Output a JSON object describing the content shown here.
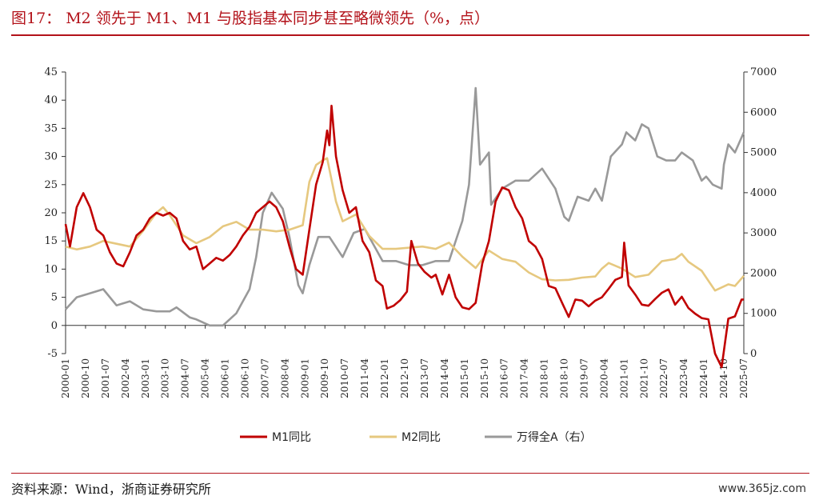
{
  "title": "图17： M2 领先于 M1、M1 与股指基本同步甚至略微领先（%，点）",
  "source": "资料来源：Wind，浙商证券研究所",
  "watermark": "www.365jz.com",
  "chart_data": {
    "type": "line",
    "title": "图17： M2 领先于 M1、M1 与股指基本同步甚至略微领先（%，点）",
    "xlabel": "",
    "ylabel": "",
    "y_left_lim": [
      -5,
      45
    ],
    "y_left_ticks": [
      -5,
      0,
      5,
      10,
      15,
      20,
      25,
      30,
      35,
      40,
      45
    ],
    "y_right_lim": [
      0,
      7000
    ],
    "y_right_ticks": [
      0,
      1000,
      2000,
      3000,
      4000,
      5000,
      6000,
      7000
    ],
    "x_range": [
      "2000-01",
      "2025-07"
    ],
    "x_ticks": [
      "2000-01",
      "2000-10",
      "2001-07",
      "2002-04",
      "2003-01",
      "2003-10",
      "2004-07",
      "2005-04",
      "2006-01",
      "2006-10",
      "2007-07",
      "2008-04",
      "2009-01",
      "2009-10",
      "2010-07",
      "2011-04",
      "2012-01",
      "2012-10",
      "2013-07",
      "2014-04",
      "2015-01",
      "2015-10",
      "2016-07",
      "2017-04",
      "2018-01",
      "2018-10",
      "2019-07",
      "2020-04",
      "2021-01",
      "2021-10",
      "2022-07",
      "2023-04",
      "2024-01",
      "2024-10",
      "2025-07"
    ],
    "legend_position": "bottom",
    "grid": false,
    "series": [
      {
        "name": "M1同比",
        "axis": "left",
        "color": "#c00000",
        "points": [
          [
            "2000-01",
            18
          ],
          [
            "2000-03",
            14
          ],
          [
            "2000-06",
            21
          ],
          [
            "2000-09",
            23.5
          ],
          [
            "2000-12",
            21
          ],
          [
            "2001-03",
            17
          ],
          [
            "2001-06",
            16
          ],
          [
            "2001-09",
            13
          ],
          [
            "2001-12",
            11
          ],
          [
            "2002-03",
            10.5
          ],
          [
            "2002-06",
            13
          ],
          [
            "2002-09",
            16
          ],
          [
            "2002-12",
            17
          ],
          [
            "2003-03",
            19
          ],
          [
            "2003-06",
            20
          ],
          [
            "2003-09",
            19.5
          ],
          [
            "2003-12",
            20
          ],
          [
            "2004-03",
            19
          ],
          [
            "2004-06",
            15
          ],
          [
            "2004-09",
            13.5
          ],
          [
            "2004-12",
            14
          ],
          [
            "2005-03",
            10
          ],
          [
            "2005-06",
            11
          ],
          [
            "2005-09",
            12
          ],
          [
            "2005-12",
            11.5
          ],
          [
            "2006-03",
            12.5
          ],
          [
            "2006-06",
            14
          ],
          [
            "2006-09",
            16
          ],
          [
            "2006-12",
            17.5
          ],
          [
            "2007-03",
            20
          ],
          [
            "2007-06",
            21
          ],
          [
            "2007-09",
            22
          ],
          [
            "2007-12",
            21
          ],
          [
            "2008-03",
            18.5
          ],
          [
            "2008-06",
            14
          ],
          [
            "2008-09",
            10
          ],
          [
            "2008-12",
            9
          ],
          [
            "2009-03",
            17
          ],
          [
            "2009-06",
            25
          ],
          [
            "2009-09",
            29
          ],
          [
            "2009-11",
            34.6
          ],
          [
            "2009-12",
            32
          ],
          [
            "2010-01",
            39
          ],
          [
            "2010-03",
            30
          ],
          [
            "2010-06",
            24
          ],
          [
            "2010-09",
            20
          ],
          [
            "2010-12",
            21
          ],
          [
            "2011-03",
            15
          ],
          [
            "2011-06",
            13
          ],
          [
            "2011-09",
            8
          ],
          [
            "2011-12",
            7
          ],
          [
            "2012-02",
            3
          ],
          [
            "2012-05",
            3.5
          ],
          [
            "2012-08",
            4.5
          ],
          [
            "2012-11",
            6
          ],
          [
            "2013-01",
            15
          ],
          [
            "2013-04",
            11
          ],
          [
            "2013-07",
            9.5
          ],
          [
            "2013-10",
            8.5
          ],
          [
            "2013-12",
            9
          ],
          [
            "2014-03",
            5.5
          ],
          [
            "2014-06",
            9
          ],
          [
            "2014-09",
            5
          ],
          [
            "2014-12",
            3.2
          ],
          [
            "2015-03",
            2.9
          ],
          [
            "2015-06",
            4
          ],
          [
            "2015-09",
            11
          ],
          [
            "2015-12",
            15
          ],
          [
            "2016-03",
            22
          ],
          [
            "2016-06",
            24.5
          ],
          [
            "2016-09",
            24
          ],
          [
            "2016-12",
            21
          ],
          [
            "2017-03",
            19
          ],
          [
            "2017-06",
            15
          ],
          [
            "2017-09",
            14
          ],
          [
            "2017-12",
            11.8
          ],
          [
            "2018-03",
            7
          ],
          [
            "2018-06",
            6.6
          ],
          [
            "2018-09",
            4
          ],
          [
            "2018-12",
            1.5
          ],
          [
            "2019-03",
            4.6
          ],
          [
            "2019-06",
            4.4
          ],
          [
            "2019-09",
            3.4
          ],
          [
            "2019-12",
            4.4
          ],
          [
            "2020-03",
            5
          ],
          [
            "2020-06",
            6.5
          ],
          [
            "2020-09",
            8.1
          ],
          [
            "2020-12",
            8.6
          ],
          [
            "2021-01",
            14.7
          ],
          [
            "2021-03",
            7.1
          ],
          [
            "2021-06",
            5.5
          ],
          [
            "2021-09",
            3.7
          ],
          [
            "2021-12",
            3.5
          ],
          [
            "2022-03",
            4.7
          ],
          [
            "2022-06",
            5.8
          ],
          [
            "2022-09",
            6.4
          ],
          [
            "2022-12",
            3.7
          ],
          [
            "2023-03",
            5.1
          ],
          [
            "2023-06",
            3.1
          ],
          [
            "2023-09",
            2.1
          ],
          [
            "2023-12",
            1.3
          ],
          [
            "2024-03",
            1.1
          ],
          [
            "2024-06",
            -5
          ],
          [
            "2024-09",
            -7.4
          ],
          [
            "2024-12",
            1.2
          ],
          [
            "2025-03",
            1.6
          ],
          [
            "2025-06",
            4.6
          ],
          [
            "2025-07",
            4.6
          ]
        ]
      },
      {
        "name": "M2同比",
        "axis": "left",
        "color": "#e6c87f",
        "points": [
          [
            "2000-01",
            14
          ],
          [
            "2000-06",
            13.5
          ],
          [
            "2000-12",
            14
          ],
          [
            "2001-06",
            15
          ],
          [
            "2001-12",
            14.5
          ],
          [
            "2002-06",
            14
          ],
          [
            "2002-12",
            16.8
          ],
          [
            "2003-06",
            20
          ],
          [
            "2003-09",
            21
          ],
          [
            "2003-12",
            19.6
          ],
          [
            "2004-06",
            16
          ],
          [
            "2004-12",
            14.6
          ],
          [
            "2005-06",
            15.7
          ],
          [
            "2005-12",
            17.6
          ],
          [
            "2006-06",
            18.4
          ],
          [
            "2006-12",
            17
          ],
          [
            "2007-06",
            17
          ],
          [
            "2007-12",
            16.7
          ],
          [
            "2008-06",
            17
          ],
          [
            "2008-12",
            17.8
          ],
          [
            "2009-03",
            25.5
          ],
          [
            "2009-06",
            28.5
          ],
          [
            "2009-09",
            29.3
          ],
          [
            "2009-11",
            29.7
          ],
          [
            "2010-03",
            22
          ],
          [
            "2010-06",
            18.5
          ],
          [
            "2010-12",
            19.7
          ],
          [
            "2011-06",
            15.9
          ],
          [
            "2011-12",
            13.6
          ],
          [
            "2012-06",
            13.6
          ],
          [
            "2012-12",
            13.8
          ],
          [
            "2013-06",
            14
          ],
          [
            "2013-12",
            13.6
          ],
          [
            "2014-06",
            14.7
          ],
          [
            "2014-12",
            12.2
          ],
          [
            "2015-06",
            10.2
          ],
          [
            "2015-12",
            13.3
          ],
          [
            "2016-06",
            11.8
          ],
          [
            "2016-12",
            11.3
          ],
          [
            "2017-06",
            9.4
          ],
          [
            "2017-12",
            8.2
          ],
          [
            "2018-06",
            8
          ],
          [
            "2018-12",
            8.1
          ],
          [
            "2019-06",
            8.5
          ],
          [
            "2019-12",
            8.7
          ],
          [
            "2020-03",
            10.1
          ],
          [
            "2020-06",
            11.1
          ],
          [
            "2020-12",
            10.1
          ],
          [
            "2021-06",
            8.6
          ],
          [
            "2021-12",
            9
          ],
          [
            "2022-06",
            11.4
          ],
          [
            "2022-12",
            11.8
          ],
          [
            "2023-03",
            12.7
          ],
          [
            "2023-06",
            11.3
          ],
          [
            "2023-12",
            9.7
          ],
          [
            "2024-06",
            6.2
          ],
          [
            "2024-12",
            7.3
          ],
          [
            "2025-03",
            7
          ],
          [
            "2025-07",
            8.8
          ]
        ]
      },
      {
        "name": "万得全A（右）",
        "axis": "right",
        "color": "#999999",
        "points": [
          [
            "2000-01",
            1100
          ],
          [
            "2000-06",
            1400
          ],
          [
            "2000-12",
            1500
          ],
          [
            "2001-06",
            1600
          ],
          [
            "2001-12",
            1200
          ],
          [
            "2002-06",
            1300
          ],
          [
            "2002-12",
            1100
          ],
          [
            "2003-06",
            1050
          ],
          [
            "2003-12",
            1050
          ],
          [
            "2004-03",
            1150
          ],
          [
            "2004-09",
            900
          ],
          [
            "2004-12",
            850
          ],
          [
            "2005-06",
            700
          ],
          [
            "2005-12",
            700
          ],
          [
            "2006-06",
            1000
          ],
          [
            "2006-12",
            1600
          ],
          [
            "2007-03",
            2400
          ],
          [
            "2007-06",
            3500
          ],
          [
            "2007-10",
            4000
          ],
          [
            "2008-03",
            3600
          ],
          [
            "2008-06",
            2900
          ],
          [
            "2008-10",
            1700
          ],
          [
            "2008-12",
            1500
          ],
          [
            "2009-03",
            2200
          ],
          [
            "2009-07",
            2900
          ],
          [
            "2009-12",
            2900
          ],
          [
            "2010-06",
            2400
          ],
          [
            "2010-11",
            3000
          ],
          [
            "2011-04",
            3100
          ],
          [
            "2011-09",
            2600
          ],
          [
            "2011-12",
            2300
          ],
          [
            "2012-06",
            2300
          ],
          [
            "2012-12",
            2200
          ],
          [
            "2013-06",
            2200
          ],
          [
            "2013-12",
            2300
          ],
          [
            "2014-06",
            2300
          ],
          [
            "2014-12",
            3300
          ],
          [
            "2015-03",
            4200
          ],
          [
            "2015-06",
            6600
          ],
          [
            "2015-08",
            4700
          ],
          [
            "2015-12",
            5000
          ],
          [
            "2016-01",
            3700
          ],
          [
            "2016-06",
            4100
          ],
          [
            "2016-12",
            4300
          ],
          [
            "2017-06",
            4300
          ],
          [
            "2017-12",
            4600
          ],
          [
            "2018-06",
            4100
          ],
          [
            "2018-10",
            3400
          ],
          [
            "2018-12",
            3300
          ],
          [
            "2019-04",
            3900
          ],
          [
            "2019-09",
            3800
          ],
          [
            "2019-12",
            4100
          ],
          [
            "2020-03",
            3800
          ],
          [
            "2020-07",
            4900
          ],
          [
            "2020-12",
            5200
          ],
          [
            "2021-02",
            5500
          ],
          [
            "2021-06",
            5300
          ],
          [
            "2021-09",
            5700
          ],
          [
            "2021-12",
            5600
          ],
          [
            "2022-04",
            4900
          ],
          [
            "2022-08",
            4800
          ],
          [
            "2022-12",
            4800
          ],
          [
            "2023-03",
            5000
          ],
          [
            "2023-08",
            4800
          ],
          [
            "2023-12",
            4300
          ],
          [
            "2024-02",
            4400
          ],
          [
            "2024-05",
            4200
          ],
          [
            "2024-09",
            4100
          ],
          [
            "2024-10",
            4700
          ],
          [
            "2024-12",
            5200
          ],
          [
            "2025-03",
            5000
          ],
          [
            "2025-07",
            5500
          ]
        ]
      }
    ]
  }
}
